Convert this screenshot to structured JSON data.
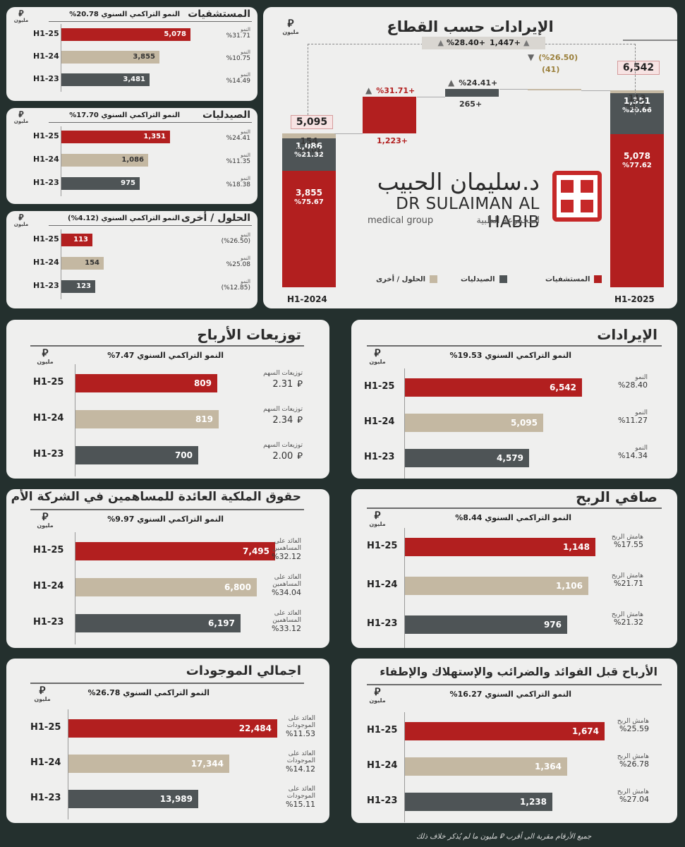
{
  "unit_label": "مليون",
  "unit_symbol": "⃁",
  "segments": {
    "hospitals": {
      "title": "المستشفيات",
      "cagr": "النمو التراكمي السنوي 20.78%",
      "rows": [
        {
          "label": "H1-25",
          "value": 5078,
          "display": "5,078",
          "note_k": "النمو",
          "note_v": "%31.71",
          "color": "red"
        },
        {
          "label": "H1-24",
          "value": 3855,
          "display": "3,855",
          "note_k": "النمو",
          "note_v": "%10.75",
          "color": "beige"
        },
        {
          "label": "H1-23",
          "value": 3481,
          "display": "3,481",
          "note_k": "النمو",
          "note_v": "%14.49",
          "color": "gray"
        }
      ],
      "max": 6000
    },
    "pharmacies": {
      "title": "الصيدليات",
      "cagr": "النمو التراكمي السنوي 17.70%",
      "rows": [
        {
          "label": "H1-25",
          "value": 1351,
          "display": "1,351",
          "note_k": "النمو",
          "note_v": "%24.41",
          "color": "red"
        },
        {
          "label": "H1-24",
          "value": 1086,
          "display": "1,086",
          "note_k": "النمو",
          "note_v": "%11.35",
          "color": "beige"
        },
        {
          "label": "H1-23",
          "value": 975,
          "display": "975",
          "note_k": "النمو",
          "note_v": "%18.38",
          "color": "gray"
        }
      ],
      "max": 1900
    },
    "solutions": {
      "title": "الحلول / أخرى",
      "cagr": "النمو التراكمي السنوي (4.12%)",
      "rows": [
        {
          "label": "H1-25",
          "value": 113,
          "display": "113",
          "note_k": "النمو",
          "note_v": "(%26.50)",
          "color": "red"
        },
        {
          "label": "H1-24",
          "value": 154,
          "display": "154",
          "note_k": "النمو",
          "note_v": "%25.08",
          "color": "beige"
        },
        {
          "label": "H1-23",
          "value": 123,
          "display": "123",
          "note_k": "النمو",
          "note_v": "(%12.85)",
          "color": "gray"
        }
      ],
      "max": 550
    }
  },
  "waterfall": {
    "title": "الإيرادات حسب القطاع",
    "logo_ar": "د.سليمان الحبيب",
    "logo_en": "DR SULAIMAN AL HABIB",
    "logo_sub_en": "medical group",
    "logo_sub_ar": "المجموعة الطبية",
    "start_label": "H1-2024",
    "end_label": "H1-2025",
    "start_total": "5,095",
    "end_total": "6,542",
    "total_change": "1,447+",
    "total_change_pct": "%28.40+",
    "start_stack": [
      {
        "name": "hospitals",
        "value": 3855,
        "display": "3,855",
        "pct": "%75.67",
        "color": "red"
      },
      {
        "name": "pharmacies",
        "value": 1086,
        "display": "1,086",
        "pct": "%21.32",
        "color": "gray"
      },
      {
        "name": "other",
        "value": 154,
        "display": "154",
        "pct": "%3.01",
        "color": "beige"
      }
    ],
    "end_stack": [
      {
        "name": "hospitals",
        "value": 5078,
        "display": "5,078",
        "pct": "%77.62",
        "color": "red"
      },
      {
        "name": "pharmacies",
        "value": 1351,
        "display": "1,351",
        "pct": "%20.66",
        "color": "gray"
      },
      {
        "name": "other",
        "value": 113,
        "display": "113",
        "pct": "%1.72",
        "color": "beige"
      }
    ],
    "deltas": [
      {
        "name": "hospitals",
        "value": 1223,
        "display": "1,223+",
        "pct": "%31.71+",
        "color": "red"
      },
      {
        "name": "pharmacies",
        "value": 265,
        "display": "265+",
        "pct": "%24.41+",
        "color": "gray"
      },
      {
        "name": "other",
        "value": -41,
        "display": "(41)",
        "pct": "(%26.50)",
        "color": "beige"
      }
    ],
    "legend": [
      {
        "label": "المستشفيات",
        "color": "red"
      },
      {
        "label": "الصيدليات",
        "color": "gray"
      },
      {
        "label": "الحلول / أخرى",
        "color": "beige"
      }
    ]
  },
  "panels": {
    "dividends": {
      "title": "توزيعات الأرباح",
      "cagr": "النمو التراكمي السنوي 7.47%",
      "max": 1250,
      "rows": [
        {
          "label": "H1-25",
          "value": 809,
          "display": "809",
          "note_k": "توزيعات السهم",
          "note_v": "2.31",
          "color": "red"
        },
        {
          "label": "H1-24",
          "value": 819,
          "display": "819",
          "note_k": "توزيعات السهم",
          "note_v": "2.34",
          "color": "beige"
        },
        {
          "label": "H1-23",
          "value": 700,
          "display": "700",
          "note_k": "توزيعات السهم",
          "note_v": "2.00",
          "color": "gray"
        }
      ]
    },
    "revenue": {
      "title": "الإيرادات",
      "cagr": "النمو التراكمي السنوي 19.53%",
      "max": 8700,
      "rows": [
        {
          "label": "H1-25",
          "value": 6542,
          "display": "6,542",
          "note_k": "النمو",
          "note_v": "%28.40",
          "color": "red"
        },
        {
          "label": "H1-24",
          "value": 5095,
          "display": "5,095",
          "note_k": "النمو",
          "note_v": "%11.27",
          "color": "beige"
        },
        {
          "label": "H1-23",
          "value": 4579,
          "display": "4,579",
          "note_k": "النمو",
          "note_v": "%14.34",
          "color": "gray"
        }
      ]
    },
    "equity": {
      "title": "حقوق الملكية العائدة للمساهمين في الشركة الأم",
      "cagr": "النمو التراكمي السنوي 9.97%",
      "max": 8200,
      "rows": [
        {
          "label": "H1-25",
          "value": 7495,
          "display": "7,495",
          "note_k": "العائد على المساهمين",
          "note_v": "%32.12",
          "color": "red"
        },
        {
          "label": "H1-24",
          "value": 6800,
          "display": "6,800",
          "note_k": "العائد على المساهمين",
          "note_v": "%34.04",
          "color": "beige"
        },
        {
          "label": "H1-23",
          "value": 6197,
          "display": "6,197",
          "note_k": "العائد على المساهمين",
          "note_v": "%33.12",
          "color": "gray"
        }
      ]
    },
    "net_profit": {
      "title": "صافي الربح",
      "cagr": "النمو التراكمي السنوي 8.44%",
      "max": 1530,
      "rows": [
        {
          "label": "H1-25",
          "value": 1148,
          "display": "1,148",
          "note_k": "هامش الربح",
          "note_v": "%17.55",
          "color": "red"
        },
        {
          "label": "H1-24",
          "value": 1106,
          "display": "1,106",
          "note_k": "هامش الربح",
          "note_v": "%21.71",
          "color": "beige"
        },
        {
          "label": "H1-23",
          "value": 976,
          "display": "976",
          "note_k": "هامش الربح",
          "note_v": "%21.32",
          "color": "gray"
        }
      ]
    },
    "assets": {
      "title": "اجمالي الموجودات",
      "cagr": "النمو التراكمي السنوي 26.78%",
      "max": 24300,
      "rows": [
        {
          "label": "H1-25",
          "value": 22484,
          "display": "22,484",
          "note_k": "العائد على الموجودات",
          "note_v": "%11.53",
          "color": "red"
        },
        {
          "label": "H1-24",
          "value": 17344,
          "display": "17,344",
          "note_k": "العائد على الموجودات",
          "note_v": "%14.12",
          "color": "beige"
        },
        {
          "label": "H1-23",
          "value": 13989,
          "display": "13,989",
          "note_k": "العائد على الموجودات",
          "note_v": "%15.11",
          "color": "gray"
        }
      ]
    },
    "ebitda": {
      "title": "الأرباح قبل الفوائد والضرائب والإستهلاك والإطفاء",
      "cagr": "النمو التراكمي السنوي 16.27%",
      "max": 2250,
      "rows": [
        {
          "label": "H1-25",
          "value": 1674,
          "display": "1,674",
          "note_k": "هامش الربح",
          "note_v": "%25.59",
          "color": "red"
        },
        {
          "label": "H1-24",
          "value": 1364,
          "display": "1,364",
          "note_k": "هامش الربح",
          "note_v": "%26.78",
          "color": "beige"
        },
        {
          "label": "H1-23",
          "value": 1238,
          "display": "1,238",
          "note_k": "هامش الربح",
          "note_v": "%27.04",
          "color": "gray"
        }
      ]
    }
  },
  "footer": "جميع الأرقام مقربة الى أقرب ⃁ مليون ما لم يُذكر خلاف ذلك",
  "colors": {
    "red": "#b21f1f",
    "beige": "#c4b8a2",
    "gray": "#4e5456"
  },
  "chart_data": [
    {
      "type": "bar",
      "title": "المستشفيات",
      "categories": [
        "H1-25",
        "H1-24",
        "H1-23"
      ],
      "values": [
        5078,
        3855,
        3481
      ]
    },
    {
      "type": "bar",
      "title": "الصيدليات",
      "categories": [
        "H1-25",
        "H1-24",
        "H1-23"
      ],
      "values": [
        1351,
        1086,
        975
      ]
    },
    {
      "type": "bar",
      "title": "الحلول / أخرى",
      "categories": [
        "H1-25",
        "H1-24",
        "H1-23"
      ],
      "values": [
        113,
        154,
        123
      ]
    },
    {
      "type": "bar",
      "title": "الإيرادات حسب القطاع",
      "categories": [
        "H1-2024",
        "المستشفيات",
        "الصيدليات",
        "الحلول / أخرى",
        "H1-2025"
      ],
      "values": [
        5095,
        1223,
        265,
        -41,
        6542
      ]
    },
    {
      "type": "bar",
      "title": "توزيعات الأرباح",
      "categories": [
        "H1-25",
        "H1-24",
        "H1-23"
      ],
      "values": [
        809,
        819,
        700
      ]
    },
    {
      "type": "bar",
      "title": "الإيرادات",
      "categories": [
        "H1-25",
        "H1-24",
        "H1-23"
      ],
      "values": [
        6542,
        5095,
        4579
      ]
    },
    {
      "type": "bar",
      "title": "حقوق الملكية العائدة للمساهمين في الشركة الأم",
      "categories": [
        "H1-25",
        "H1-24",
        "H1-23"
      ],
      "values": [
        7495,
        6800,
        6197
      ]
    },
    {
      "type": "bar",
      "title": "صافي الربح",
      "categories": [
        "H1-25",
        "H1-24",
        "H1-23"
      ],
      "values": [
        1148,
        1106,
        976
      ]
    },
    {
      "type": "bar",
      "title": "اجمالي الموجودات",
      "categories": [
        "H1-25",
        "H1-24",
        "H1-23"
      ],
      "values": [
        22484,
        17344,
        13989
      ]
    },
    {
      "type": "bar",
      "title": "الأرباح قبل الفوائد والضرائب والإستهلاك والإطفاء",
      "categories": [
        "H1-25",
        "H1-24",
        "H1-23"
      ],
      "values": [
        1674,
        1364,
        1238
      ]
    }
  ]
}
